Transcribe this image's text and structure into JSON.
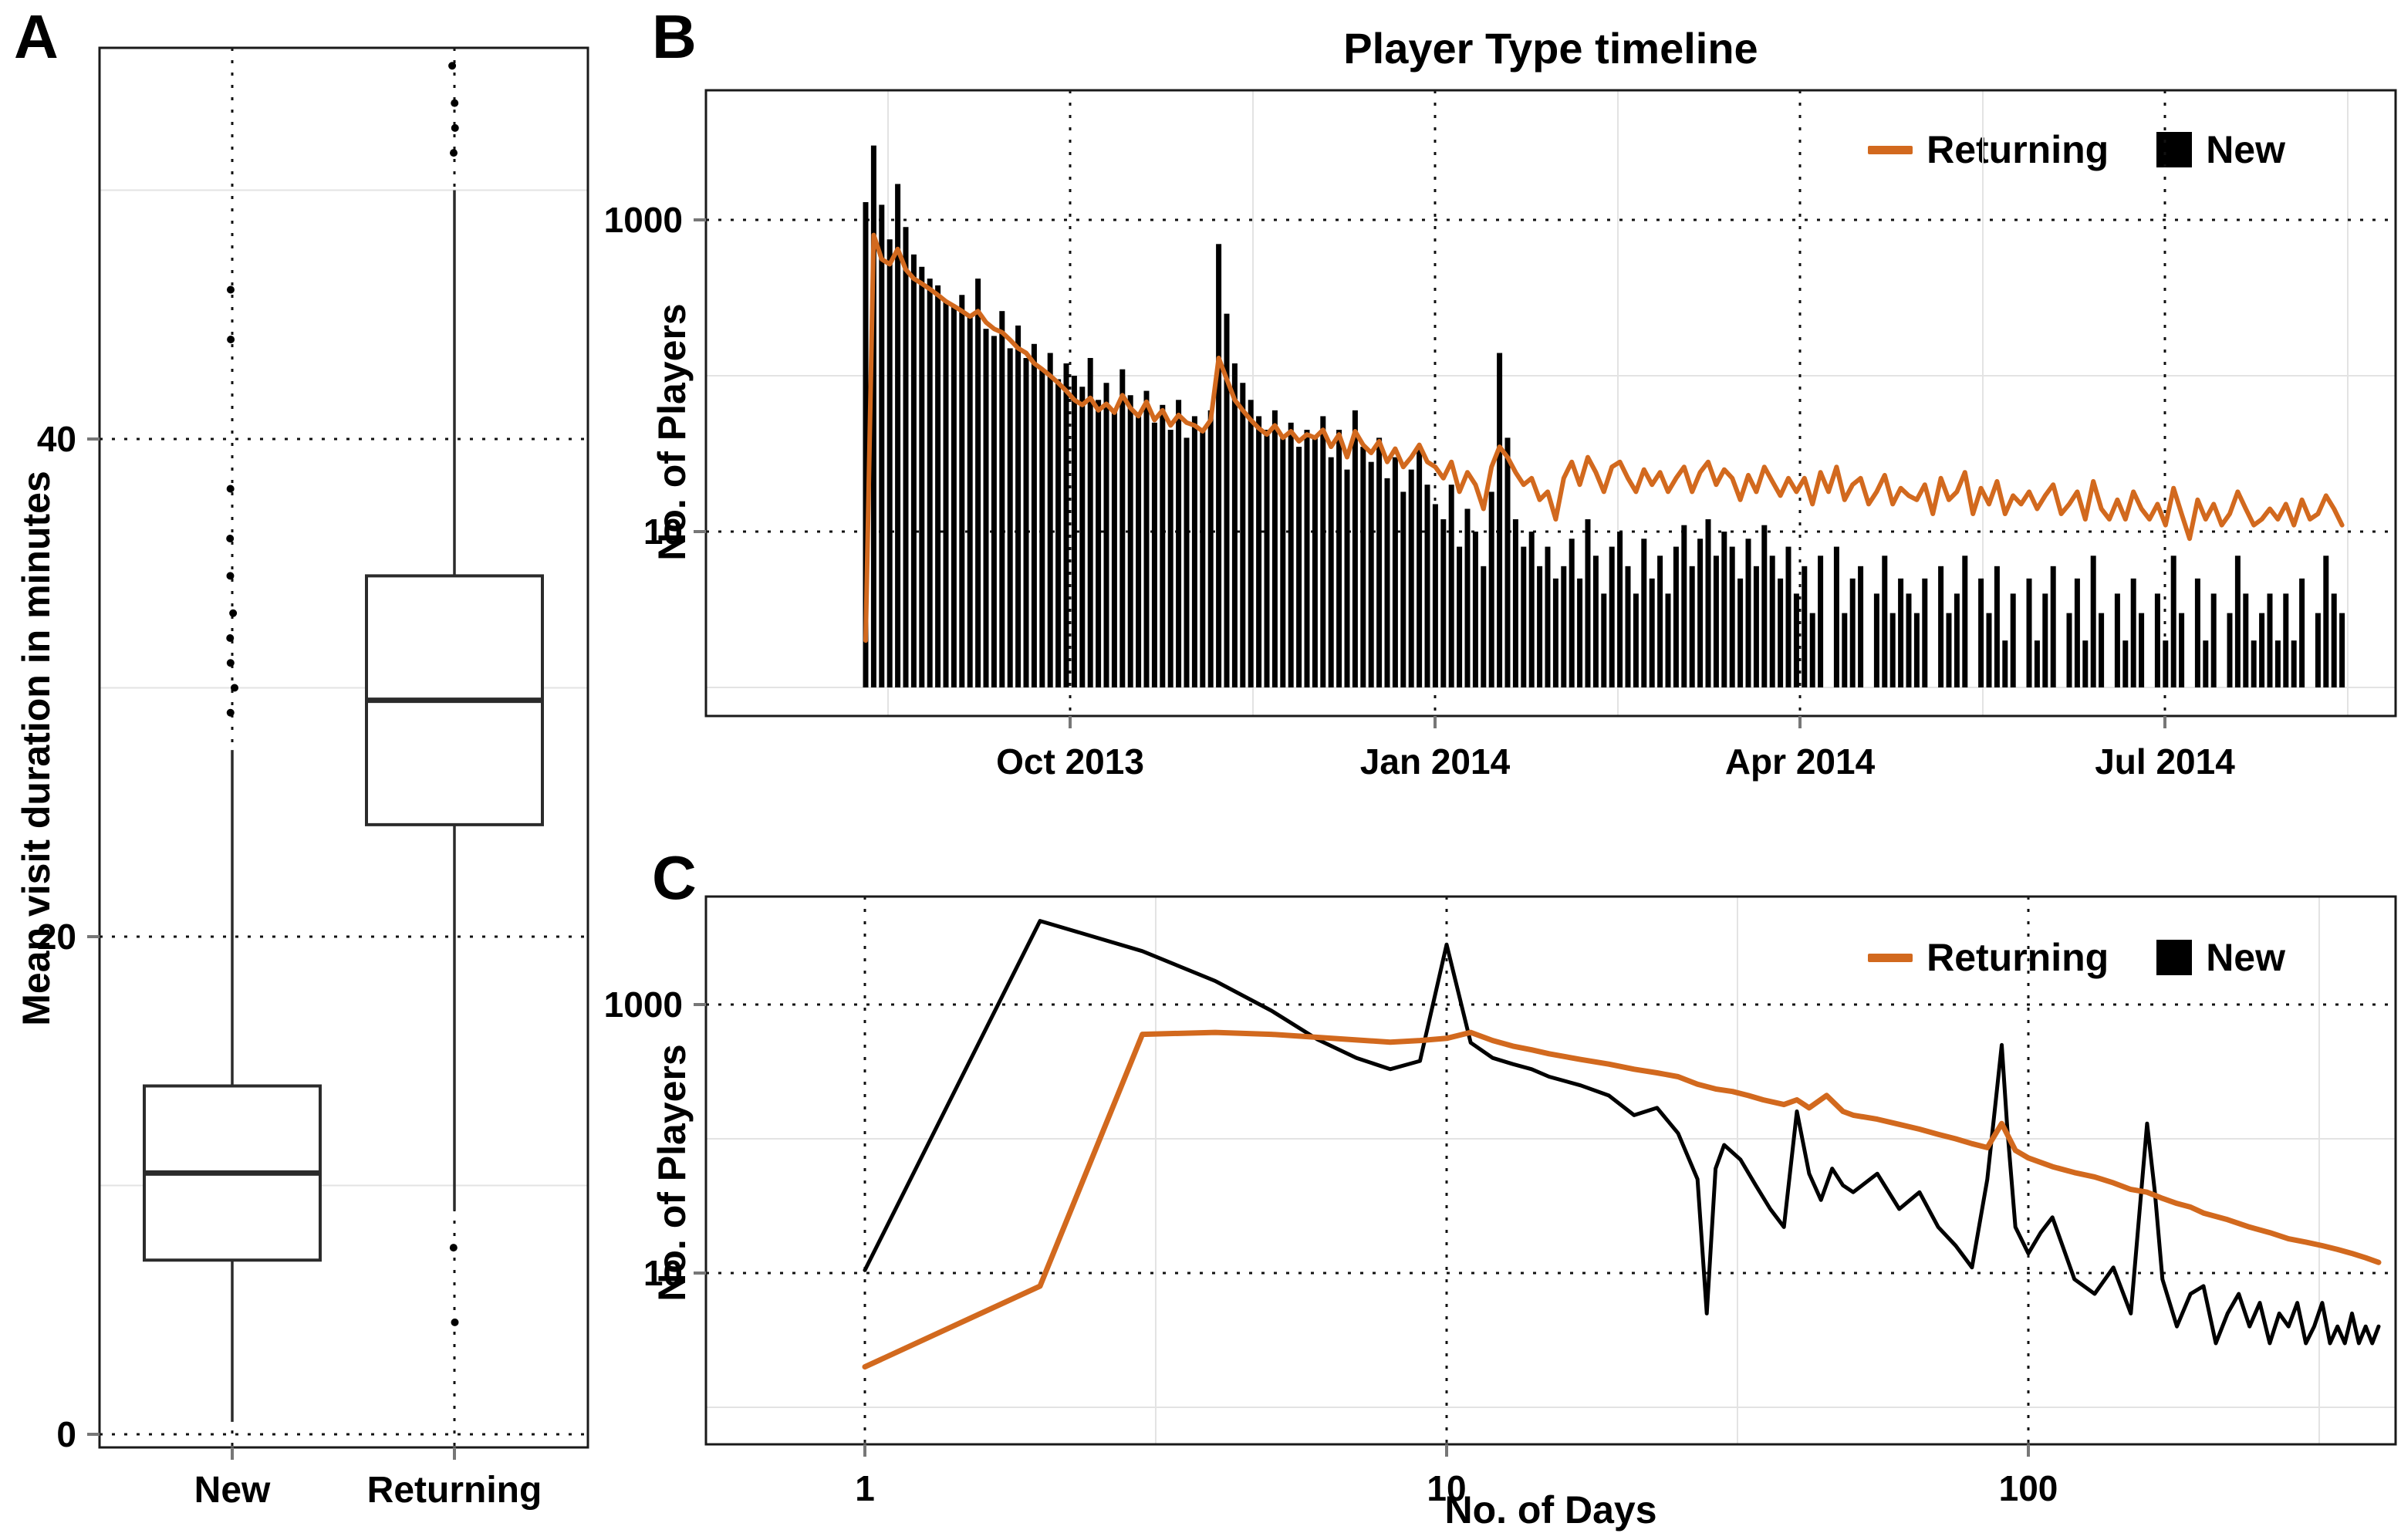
{
  "colors": {
    "orange": "#D2691E",
    "black": "#000000",
    "grid_minor": "#E3E3E3",
    "axis": "#1a1a1a"
  },
  "chart_data": [
    {
      "type": "boxplot",
      "letter": "A",
      "ylabel": "Mean visit duration in minutes",
      "yticks": [
        0,
        20,
        40
      ],
      "minor_yticks": [
        10,
        30,
        50
      ],
      "categories": [
        "New",
        "Returning"
      ],
      "ylim": [
        0,
        56
      ],
      "boxes": [
        {
          "category": "New",
          "whisker_low": 0.5,
          "q1": 7,
          "median": 10.5,
          "q3": 14,
          "whisker_high": 27.5,
          "outliers_high": [
            29,
            30,
            31,
            32,
            33,
            34.5,
            36,
            38,
            44,
            46
          ],
          "outliers_low": []
        },
        {
          "category": "Returning",
          "whisker_low": 9,
          "q1": 24.5,
          "median": 29.5,
          "q3": 34.5,
          "whisker_high": 50,
          "outliers_high": [
            51.5,
            52.5,
            53.5,
            55
          ],
          "outliers_low": [
            7.5,
            4.5
          ]
        }
      ]
    },
    {
      "type": "bar",
      "letter": "B",
      "title": "Player Type timeline",
      "ylabel": "No. of Players",
      "yticks": [
        1000,
        10
      ],
      "minor_yticks": [
        100,
        1
      ],
      "xticks": [
        "Oct 2013",
        "Jan 2014",
        "Apr 2014",
        "Jul 2014"
      ],
      "x_start_label": "Aug 2013",
      "sample_step_days": 2,
      "ylim_log": [
        1,
        5000
      ],
      "legend": [
        {
          "label": "Returning",
          "swatch": "line"
        },
        {
          "label": "New",
          "swatch": "square"
        }
      ],
      "series": [
        {
          "name": "New",
          "style": "bars",
          "values": [
            1300,
            3000,
            1250,
            750,
            1700,
            900,
            600,
            500,
            420,
            380,
            300,
            280,
            330,
            240,
            420,
            200,
            180,
            260,
            150,
            210,
            130,
            160,
            110,
            140,
            95,
            120,
            100,
            85,
            130,
            70,
            90,
            60,
            110,
            75,
            55,
            80,
            50,
            65,
            45,
            70,
            40,
            55,
            45,
            60,
            700,
            250,
            120,
            90,
            70,
            55,
            45,
            60,
            40,
            50,
            35,
            45,
            40,
            55,
            30,
            45,
            25,
            60,
            35,
            28,
            40,
            22,
            30,
            18,
            25,
            35,
            20,
            15,
            12,
            20,
            8,
            14,
            10,
            6,
            18,
            140,
            40,
            12,
            8,
            10,
            6,
            8,
            5,
            6,
            9,
            5,
            12,
            7,
            4,
            8,
            10,
            6,
            4,
            9,
            5,
            7,
            4,
            8,
            11,
            6,
            9,
            12,
            7,
            10,
            8,
            5,
            9,
            6,
            11,
            7,
            5,
            8,
            4,
            6,
            3,
            7,
            0,
            8,
            3,
            5,
            6,
            0,
            4,
            7,
            3,
            5,
            4,
            3,
            5,
            0,
            6,
            3,
            4,
            7,
            0,
            5,
            3,
            6,
            2,
            4,
            0,
            5,
            2,
            4,
            6,
            0,
            3,
            5,
            2,
            7,
            3,
            0,
            4,
            2,
            5,
            3,
            0,
            4,
            2,
            7,
            3,
            0,
            5,
            2,
            4,
            0,
            3,
            7,
            4,
            2,
            3,
            4,
            2,
            4,
            2,
            5,
            0,
            3,
            7,
            4,
            3
          ]
        },
        {
          "name": "Returning",
          "style": "line",
          "values": [
            2,
            800,
            560,
            520,
            650,
            480,
            420,
            390,
            360,
            330,
            300,
            280,
            260,
            240,
            260,
            220,
            200,
            190,
            170,
            150,
            140,
            120,
            110,
            100,
            90,
            80,
            70,
            65,
            72,
            60,
            66,
            58,
            75,
            62,
            55,
            68,
            52,
            60,
            48,
            56,
            50,
            48,
            44,
            52,
            130,
            95,
            70,
            60,
            52,
            46,
            42,
            48,
            40,
            44,
            38,
            42,
            40,
            45,
            35,
            42,
            30,
            44,
            36,
            32,
            38,
            28,
            34,
            26,
            30,
            36,
            28,
            26,
            22,
            28,
            18,
            24,
            20,
            14,
            26,
            35,
            30,
            24,
            20,
            22,
            16,
            18,
            12,
            22,
            28,
            20,
            30,
            24,
            18,
            26,
            28,
            22,
            18,
            25,
            20,
            24,
            18,
            22,
            26,
            18,
            24,
            28,
            20,
            25,
            22,
            16,
            23,
            18,
            26,
            21,
            17,
            22,
            18,
            22,
            15,
            24,
            18,
            26,
            16,
            20,
            22,
            15,
            18,
            23,
            15,
            19,
            17,
            16,
            20,
            13,
            22,
            16,
            18,
            24,
            13,
            19,
            15,
            21,
            13,
            17,
            15,
            18,
            14,
            17,
            20,
            13,
            15,
            18,
            12,
            21,
            14,
            12,
            16,
            12,
            18,
            14,
            12,
            15,
            11,
            19,
            13,
            9,
            16,
            12,
            15,
            11,
            13,
            18,
            14,
            11,
            12,
            14,
            12,
            15,
            11,
            16,
            12,
            13,
            17,
            14,
            11
          ]
        }
      ]
    },
    {
      "type": "line",
      "letter": "C",
      "ylabel": "No. of Players",
      "xlabel": "No. of Days",
      "yticks": [
        1000,
        10
      ],
      "minor_yticks": [
        100,
        1
      ],
      "xticks": [
        1,
        10,
        100
      ],
      "minor_xticks": [
        3.162,
        31.62,
        316.2
      ],
      "xlim_log": [
        0.55,
        430
      ],
      "ylim_log": [
        0.55,
        6300
      ],
      "legend": [
        {
          "label": "Returning",
          "swatch": "line"
        },
        {
          "label": "New",
          "swatch": "square"
        }
      ],
      "series": [
        {
          "name": "New",
          "style": "line",
          "color_key": "black",
          "x": [
            1,
            2,
            3,
            4,
            5,
            6,
            7,
            8,
            9,
            10,
            11,
            12,
            13,
            14,
            15,
            17,
            19,
            21,
            23,
            25,
            27,
            28,
            29,
            30,
            32,
            34,
            36,
            38,
            40,
            42,
            44,
            46,
            48,
            50,
            55,
            60,
            65,
            70,
            75,
            80,
            85,
            88,
            90,
            92,
            95,
            100,
            105,
            110,
            120,
            130,
            140,
            150,
            160,
            165,
            170,
            180,
            190,
            200,
            210,
            220,
            230,
            240,
            250,
            260,
            270,
            280,
            290,
            300,
            310,
            320,
            330,
            340,
            350,
            360,
            370,
            380,
            390,
            400
          ],
          "y": [
            10.5,
            4200,
            2500,
            1500,
            900,
            550,
            400,
            330,
            380,
            2800,
            520,
            400,
            360,
            330,
            290,
            250,
            210,
            150,
            170,
            110,
            50,
            5,
            60,
            90,
            70,
            45,
            30,
            22,
            160,
            55,
            35,
            60,
            45,
            40,
            55,
            30,
            40,
            22,
            16,
            11,
            50,
            200,
            500,
            120,
            22,
            14,
            20,
            26,
            9,
            7,
            11,
            5,
            130,
            40,
            9,
            4,
            7,
            8,
            3,
            5,
            7,
            4,
            6,
            3,
            5,
            4,
            6,
            3,
            4,
            6,
            3,
            4,
            3,
            5,
            3,
            4,
            3,
            4
          ]
        },
        {
          "name": "Returning",
          "style": "line",
          "color_key": "orange",
          "x": [
            1,
            2,
            3,
            4,
            5,
            6,
            7,
            8,
            9,
            10,
            11,
            12,
            13,
            14,
            15,
            17,
            19,
            21,
            23,
            25,
            27,
            29,
            31,
            33,
            35,
            38,
            40,
            42,
            45,
            48,
            50,
            55,
            60,
            65,
            70,
            75,
            80,
            85,
            90,
            95,
            100,
            110,
            120,
            130,
            140,
            150,
            160,
            170,
            180,
            190,
            200,
            220,
            240,
            260,
            280,
            300,
            320,
            340,
            360,
            380,
            400
          ],
          "y": [
            2,
            8,
            600,
            620,
            600,
            570,
            545,
            525,
            540,
            560,
            620,
            540,
            490,
            460,
            430,
            390,
            360,
            330,
            310,
            290,
            255,
            235,
            225,
            210,
            195,
            180,
            195,
            170,
            210,
            160,
            150,
            140,
            128,
            118,
            108,
            100,
            92,
            86,
            130,
            82,
            72,
            62,
            56,
            52,
            47,
            42,
            40,
            36,
            33,
            31,
            28,
            25,
            22,
            20,
            18,
            17,
            16,
            15,
            14,
            13,
            12
          ]
        }
      ]
    }
  ]
}
